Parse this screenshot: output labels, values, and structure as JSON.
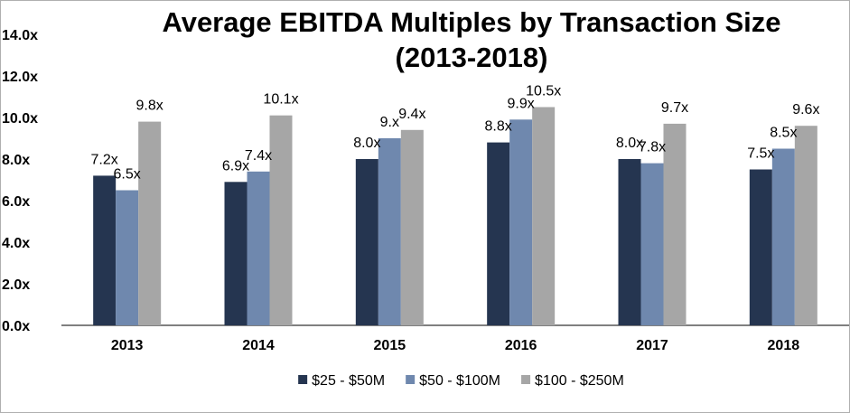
{
  "chart_data": {
    "type": "bar",
    "title": "Average EBITDA Multiples by Transaction Size (2013-2018)",
    "title_lines": [
      "Average EBITDA Multiples by Transaction Size",
      "(2013-2018)"
    ],
    "categories": [
      "2013",
      "2014",
      "2015",
      "2016",
      "2017",
      "2018"
    ],
    "series": [
      {
        "name": "$25 - $50M",
        "color": "#253550",
        "values": [
          7.2,
          6.9,
          8.0,
          8.8,
          8.0,
          7.5
        ],
        "labels": [
          "7.2x",
          "6.9x",
          "8.0x",
          "8.8x",
          "8.0x",
          "7.5x"
        ]
      },
      {
        "name": "$50 - $100M",
        "color": "#6f88ae",
        "values": [
          6.5,
          7.4,
          9.0,
          9.9,
          7.8,
          8.5
        ],
        "labels": [
          "6.5x",
          "7.4x",
          "9.x",
          "9.9x",
          "7.8x",
          "8.5x"
        ]
      },
      {
        "name": "$100 - $250M",
        "color": "#a6a6a6",
        "values": [
          9.8,
          10.1,
          9.4,
          10.5,
          9.7,
          9.6
        ],
        "labels": [
          "9.8x",
          "10.1x",
          "9.4x",
          "10.5x",
          "9.7x",
          "9.6x"
        ]
      }
    ],
    "ylim": [
      0,
      14
    ],
    "yticks": [
      "0.0x",
      "2.0x",
      "4.0x",
      "6.0x",
      "8.0x",
      "10.0x",
      "12.0x",
      "14.0x"
    ],
    "xlabel": "",
    "ylabel": "",
    "grid": false,
    "legend_position": "bottom"
  }
}
